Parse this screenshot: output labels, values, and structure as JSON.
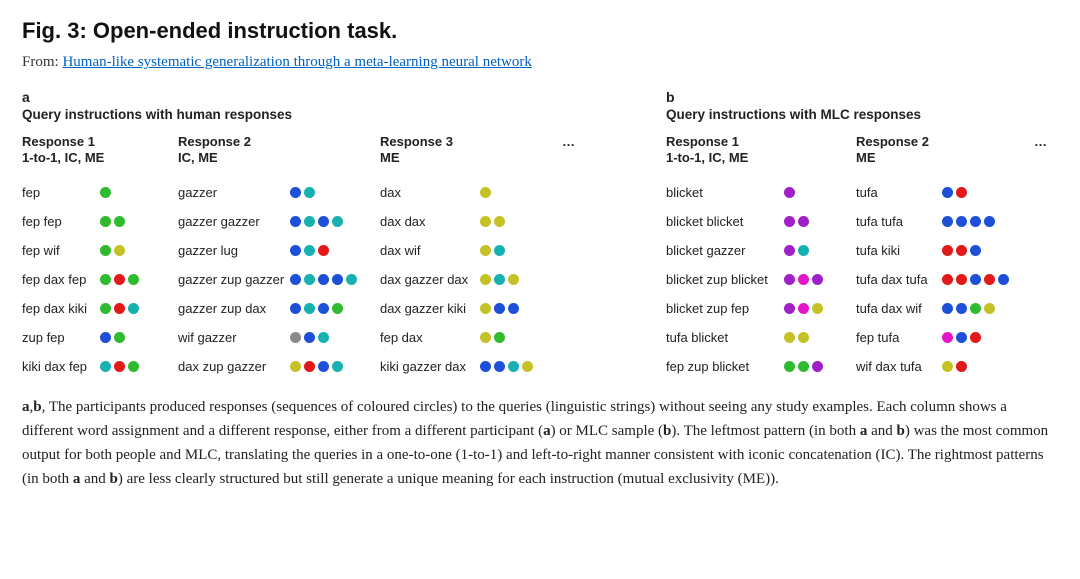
{
  "title": "Fig. 3: Open-ended instruction task.",
  "from_label": "From: ",
  "from_link": "Human-like systematic generalization through a meta-learning neural network",
  "colors": {
    "green": "#2fba2f",
    "blue": "#1e4fd8",
    "teal": "#17b1b1",
    "olive": "#c4c227",
    "red": "#e11919",
    "gray": "#8a8a8a",
    "purple": "#a020c8",
    "magenta": "#e515c9"
  },
  "panel_a": {
    "letter": "a",
    "subtitle": "Query instructions with human responses",
    "ellipsis": "…",
    "queries": [
      "fep",
      "fep fep",
      "fep wif",
      "fep dax fep",
      "fep dax kiki",
      "zup fep",
      "kiki dax fep"
    ],
    "columns": [
      {
        "header": "Response 1\n1-to-1, IC, ME",
        "text_width": 78,
        "dots_width": 78,
        "rows": [
          {
            "q": "fep",
            "d": [
              "green"
            ]
          },
          {
            "q": "fep fep",
            "d": [
              "green",
              "green"
            ]
          },
          {
            "q": "fep wif",
            "d": [
              "green",
              "olive"
            ]
          },
          {
            "q": "fep dax fep",
            "d": [
              "green",
              "red",
              "green"
            ]
          },
          {
            "q": "fep dax kiki",
            "d": [
              "green",
              "red",
              "teal"
            ]
          },
          {
            "q": "zup fep",
            "d": [
              "blue",
              "green"
            ]
          },
          {
            "q": "kiki dax fep",
            "d": [
              "teal",
              "red",
              "green"
            ]
          }
        ]
      },
      {
        "header": "Response 2\nIC, ME",
        "text_width": 112,
        "dots_width": 90,
        "rows": [
          {
            "q": "gazzer",
            "d": [
              "blue",
              "teal"
            ]
          },
          {
            "q": "gazzer gazzer",
            "d": [
              "blue",
              "teal",
              "blue",
              "teal"
            ]
          },
          {
            "q": "gazzer lug",
            "d": [
              "blue",
              "teal",
              "red"
            ]
          },
          {
            "q": "gazzer zup gazzer",
            "d": [
              "blue",
              "teal",
              "blue",
              "blue",
              "teal"
            ]
          },
          {
            "q": "gazzer zup dax",
            "d": [
              "blue",
              "teal",
              "blue",
              "green"
            ]
          },
          {
            "q": "wif gazzer",
            "d": [
              "gray",
              "blue",
              "teal"
            ]
          },
          {
            "q": "dax zup gazzer",
            "d": [
              "olive",
              "red",
              "blue",
              "teal"
            ]
          }
        ]
      },
      {
        "header": "Response 3\nME",
        "text_width": 100,
        "dots_width": 82,
        "rows": [
          {
            "q": "dax",
            "d": [
              "olive"
            ]
          },
          {
            "q": "dax dax",
            "d": [
              "olive",
              "olive"
            ]
          },
          {
            "q": "dax wif",
            "d": [
              "olive",
              "teal"
            ]
          },
          {
            "q": "dax gazzer dax",
            "d": [
              "olive",
              "teal",
              "olive"
            ]
          },
          {
            "q": "dax gazzer kiki",
            "d": [
              "olive",
              "blue",
              "blue"
            ]
          },
          {
            "q": "fep dax",
            "d": [
              "olive",
              "green"
            ]
          },
          {
            "q": "kiki gazzer dax",
            "d": [
              "blue",
              "blue",
              "teal",
              "olive"
            ]
          }
        ]
      }
    ]
  },
  "panel_b": {
    "letter": "b",
    "subtitle": "Query instructions with MLC responses",
    "ellipsis": "…",
    "columns": [
      {
        "header": "Response 1\n1-to-1, IC, ME",
        "text_width": 118,
        "dots_width": 72,
        "rows": [
          {
            "q": "blicket",
            "d": [
              "purple"
            ]
          },
          {
            "q": "blicket blicket",
            "d": [
              "purple",
              "purple"
            ]
          },
          {
            "q": "blicket gazzer",
            "d": [
              "purple",
              "teal"
            ]
          },
          {
            "q": "blicket zup blicket",
            "d": [
              "purple",
              "magenta",
              "purple"
            ]
          },
          {
            "q": "blicket zup fep",
            "d": [
              "purple",
              "magenta",
              "olive"
            ]
          },
          {
            "q": "tufa blicket",
            "d": [
              "olive",
              "olive"
            ]
          },
          {
            "q": "fep zup blicket",
            "d": [
              "green",
              "green",
              "purple"
            ]
          }
        ]
      },
      {
        "header": "Response 2\nME",
        "text_width": 86,
        "dots_width": 92,
        "rows": [
          {
            "q": "tufa",
            "d": [
              "blue",
              "red"
            ]
          },
          {
            "q": "tufa tufa",
            "d": [
              "blue",
              "blue",
              "blue",
              "blue"
            ]
          },
          {
            "q": "tufa kiki",
            "d": [
              "red",
              "red",
              "blue"
            ]
          },
          {
            "q": "tufa dax tufa",
            "d": [
              "red",
              "red",
              "blue",
              "red",
              "blue"
            ]
          },
          {
            "q": "tufa dax wif",
            "d": [
              "blue",
              "blue",
              "green",
              "olive"
            ]
          },
          {
            "q": "fep tufa",
            "d": [
              "magenta",
              "blue",
              "red"
            ]
          },
          {
            "q": "wif dax tufa",
            "d": [
              "olive",
              "red"
            ]
          }
        ]
      }
    ]
  },
  "caption_parts": [
    {
      "b": true,
      "t": "a"
    },
    {
      "b": false,
      "t": ","
    },
    {
      "b": true,
      "t": "b"
    },
    {
      "b": false,
      "t": ", The participants produced responses (sequences of coloured circles) to the queries (linguistic strings) without seeing any study examples. Each column shows a different word assignment and a different response, either from a different participant ("
    },
    {
      "b": true,
      "t": "a"
    },
    {
      "b": false,
      "t": ") or MLC sample ("
    },
    {
      "b": true,
      "t": "b"
    },
    {
      "b": false,
      "t": "). The leftmost pattern (in both "
    },
    {
      "b": true,
      "t": "a"
    },
    {
      "b": false,
      "t": " and "
    },
    {
      "b": true,
      "t": "b"
    },
    {
      "b": false,
      "t": ") was the most common output for both people and MLC, translating the queries in a one-to-one (1-to-1) and left-to-right manner consistent with iconic concatenation (IC). The rightmost patterns (in both "
    },
    {
      "b": true,
      "t": "a"
    },
    {
      "b": false,
      "t": " and "
    },
    {
      "b": true,
      "t": "b"
    },
    {
      "b": false,
      "t": ") are less clearly structured but still generate a unique meaning for each instruction (mutual exclusivity (ME))."
    }
  ]
}
